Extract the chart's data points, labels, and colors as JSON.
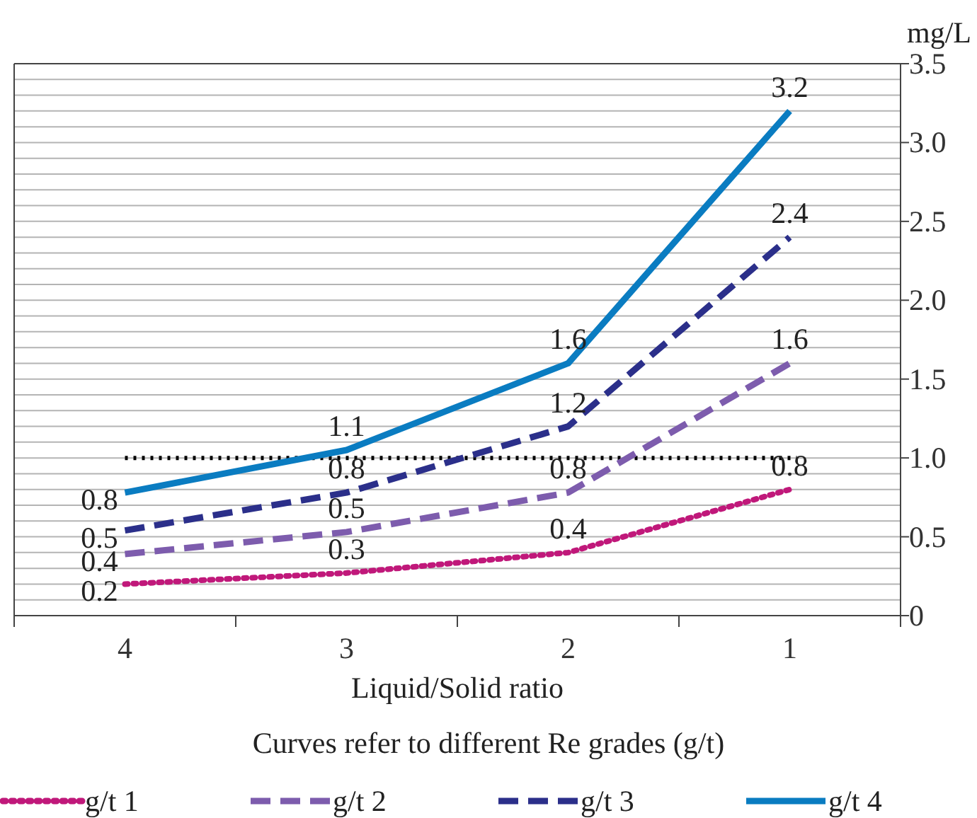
{
  "chart_data": {
    "type": "line",
    "xlabel": "Liquid/Solid ratio",
    "ylabel": "mg/L",
    "legend_title": "Curves refer to different Re grades (g/t)",
    "categories": [
      "4",
      "3",
      "2",
      "1"
    ],
    "series": [
      {
        "name": "g/t 1",
        "color": "#c0187a",
        "line_style": "dotted",
        "values": [
          0.2,
          0.27,
          0.4,
          0.8
        ],
        "value_labels": [
          "0.2",
          "0.3",
          "0.4",
          "0.8"
        ]
      },
      {
        "name": "g/t 2",
        "color": "#7d5cad",
        "line_style": "dashed",
        "values": [
          0.39,
          0.53,
          0.78,
          1.6
        ],
        "value_labels": [
          "0.4",
          "0.5",
          "0.8",
          "1.6"
        ]
      },
      {
        "name": "g/t 3",
        "color": "#2b2f8a",
        "line_style": "dashed",
        "values": [
          0.54,
          0.78,
          1.2,
          2.4
        ],
        "value_labels": [
          "0.5",
          "0.8",
          "1.2",
          "2.4"
        ]
      },
      {
        "name": "g/t 4",
        "color": "#0a7cc1",
        "line_style": "solid",
        "values": [
          0.78,
          1.05,
          1.6,
          3.2
        ],
        "value_labels": [
          "0.8",
          "1.1",
          "1.6",
          "3.2"
        ]
      }
    ],
    "ylim": [
      0,
      3.5
    ],
    "yticks": [
      0,
      {
        "value": 0.1,
        "label": null
      },
      {
        "value": 0.2,
        "label": null
      },
      {
        "value": 0.3,
        "label": null
      },
      {
        "value": 0.4,
        "label": null
      },
      0.5,
      {
        "value": 0.6,
        "label": null
      },
      {
        "value": 0.7,
        "label": null
      },
      {
        "value": 0.8,
        "label": null
      },
      {
        "value": 0.9,
        "label": null
      },
      {
        "value": 1,
        "label": "1.0"
      },
      {
        "value": 1.1,
        "label": null
      },
      {
        "value": 1.2,
        "label": null
      },
      {
        "value": 1.3,
        "label": null
      },
      {
        "value": 1.4,
        "label": null
      },
      1.5,
      {
        "value": 1.6,
        "label": null
      },
      {
        "value": 1.7,
        "label": null
      },
      {
        "value": 1.8,
        "label": null
      },
      {
        "value": 1.9,
        "label": null
      },
      {
        "value": 2,
        "label": "2.0"
      },
      {
        "value": 2.1,
        "label": null
      },
      {
        "value": 2.2,
        "label": null
      },
      {
        "value": 2.3,
        "label": null
      },
      {
        "value": 2.4,
        "label": null
      },
      2.5,
      {
        "value": 2.6,
        "label": null
      },
      {
        "value": 2.7,
        "label": null
      },
      {
        "value": 2.8,
        "label": null
      },
      {
        "value": 2.9,
        "label": null
      },
      {
        "value": 3,
        "label": "3.0"
      },
      {
        "value": 3.1,
        "label": null
      },
      {
        "value": 3.2,
        "label": null
      },
      {
        "value": 3.3,
        "label": null
      },
      {
        "value": 3.4,
        "label": null
      },
      3.5
    ],
    "grid": "y",
    "legend": "bottom",
    "marker": "none",
    "ref_lines": [
      {
        "axis": "y",
        "value": 1,
        "color": "#000000",
        "line_style": "dotted"
      }
    ]
  }
}
